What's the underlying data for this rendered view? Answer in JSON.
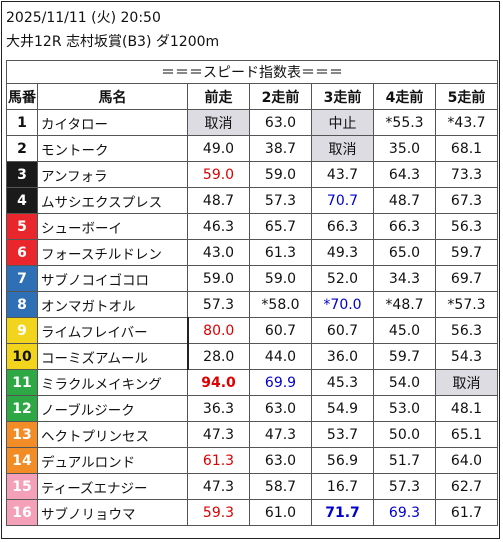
{
  "header": {
    "date": "2025/11/11 (火) 20:50",
    "race": "大井12R 志村坂賞(B3) ダ1200m"
  },
  "table": {
    "title": "＝＝＝スピード指数表＝＝＝",
    "columns": [
      "馬番",
      "馬名",
      "前走",
      "2走前",
      "3走前",
      "4走前",
      "5走前"
    ],
    "rows": [
      {
        "num": "1",
        "name": "カイタロー",
        "vals": [
          "取消",
          "63.0",
          "中止",
          "*55.3",
          "*43.7"
        ]
      },
      {
        "num": "2",
        "name": "モントーク",
        "vals": [
          "49.0",
          "38.7",
          "取消",
          "35.0",
          "68.1"
        ]
      },
      {
        "num": "3",
        "name": "アンフォラ",
        "vals": [
          "59.0",
          "59.0",
          "43.7",
          "64.3",
          "73.3"
        ]
      },
      {
        "num": "4",
        "name": "ムサシエクスプレス",
        "vals": [
          "48.7",
          "57.3",
          "70.7",
          "48.7",
          "67.3"
        ]
      },
      {
        "num": "5",
        "name": "シューボーイ",
        "vals": [
          "46.3",
          "65.7",
          "66.3",
          "66.3",
          "56.3"
        ]
      },
      {
        "num": "6",
        "name": "フォースチルドレン",
        "vals": [
          "43.0",
          "61.3",
          "49.3",
          "65.0",
          "59.7"
        ]
      },
      {
        "num": "7",
        "name": "サブノコイゴコロ",
        "vals": [
          "59.0",
          "59.0",
          "52.0",
          "34.3",
          "69.7"
        ]
      },
      {
        "num": "8",
        "name": "オンマガトオル",
        "vals": [
          "57.3",
          "*58.0",
          "*70.0",
          "*48.7",
          "*57.3"
        ]
      },
      {
        "num": "9",
        "name": "ライムフレイバー",
        "vals": [
          "80.0",
          "60.7",
          "60.7",
          "45.0",
          "56.3"
        ]
      },
      {
        "num": "10",
        "name": "コーミズアムール",
        "vals": [
          "28.0",
          "44.0",
          "36.0",
          "59.7",
          "54.3"
        ]
      },
      {
        "num": "11",
        "name": "ミラクルメイキング",
        "vals": [
          "94.0",
          "69.9",
          "45.3",
          "54.0",
          "取消"
        ]
      },
      {
        "num": "12",
        "name": "ノーブルジーク",
        "vals": [
          "36.3",
          "63.0",
          "54.9",
          "53.0",
          "48.1"
        ]
      },
      {
        "num": "13",
        "name": "ヘクトプリンセス",
        "vals": [
          "47.3",
          "47.3",
          "53.7",
          "50.0",
          "65.1"
        ]
      },
      {
        "num": "14",
        "name": "デュアルロンド",
        "vals": [
          "61.3",
          "63.0",
          "56.9",
          "51.7",
          "64.0"
        ]
      },
      {
        "num": "15",
        "name": "ティーズエナジー",
        "vals": [
          "47.3",
          "58.7",
          "16.7",
          "57.3",
          "62.7"
        ]
      },
      {
        "num": "16",
        "name": "サブノリョウマ",
        "vals": [
          "59.3",
          "61.0",
          "71.7",
          "69.3",
          "61.7"
        ]
      }
    ]
  },
  "colors": {
    "frame_white": "#ffffff",
    "frame_black": "#1a1a1a",
    "frame_red": "#e8262b",
    "frame_blue": "#2f6fb6",
    "frame_yellow": "#f2d41d",
    "frame_green": "#2ea845",
    "frame_orange": "#f18c26",
    "frame_pink": "#f4a0b8",
    "highlight_red": "#dd0000",
    "highlight_blue": "#0000cc",
    "scratch_gray": "#dcdce2"
  }
}
